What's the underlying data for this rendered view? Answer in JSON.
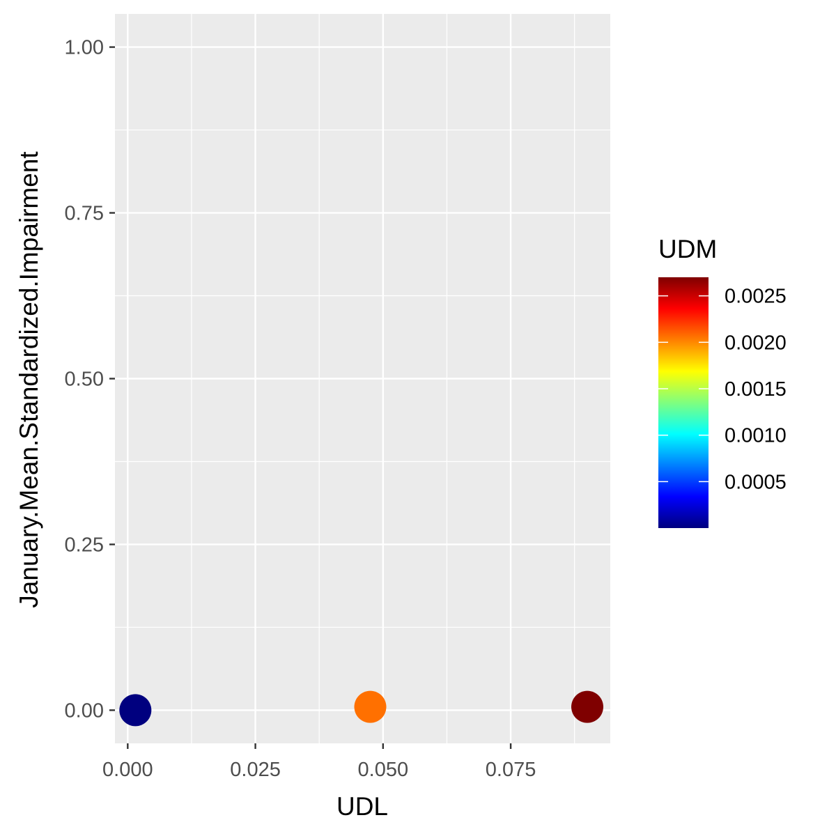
{
  "chart_data": {
    "type": "scatter",
    "title": "",
    "xlabel": "UDL",
    "ylabel": "January.Mean.Standardized.Impairment",
    "xlim": [
      -0.0025,
      0.0945
    ],
    "ylim": [
      -0.05,
      1.05
    ],
    "x_ticks": [
      0.0,
      0.025,
      0.05,
      0.075
    ],
    "x_tick_labels": [
      "0.000",
      "0.025",
      "0.050",
      "0.075"
    ],
    "y_ticks": [
      0.0,
      0.25,
      0.5,
      0.75,
      1.0
    ],
    "y_tick_labels": [
      "0.00",
      "0.25",
      "0.50",
      "0.75",
      "1.00"
    ],
    "grid": true,
    "points": [
      {
        "x": 0.0015,
        "y": 0.0,
        "udm": 0.0,
        "color": "#00007F"
      },
      {
        "x": 0.0475,
        "y": 0.005,
        "udm": 0.00205,
        "color": "#FF7000"
      },
      {
        "x": 0.09,
        "y": 0.005,
        "udm": 0.0027,
        "color": "#7F0000"
      }
    ],
    "color_scale": {
      "title": "UDM",
      "palette": "jet",
      "min": 0.0,
      "max": 0.0027,
      "breaks": [
        0.0025,
        0.002,
        0.0015,
        0.001,
        0.0005
      ],
      "break_labels": [
        "0.0025",
        "0.0020",
        "0.0015",
        "0.0010",
        "0.0005"
      ],
      "gradient_colors": [
        "#00007F",
        "#0000FF",
        "#007FFF",
        "#00FFFF",
        "#7FFF7F",
        "#FFFF00",
        "#FF7F00",
        "#FF0000",
        "#7F0000"
      ],
      "legend_position": "right"
    },
    "colors": {
      "panel_background": "#EBEBEB",
      "grid": "#FFFFFF",
      "tick": "#333333"
    }
  }
}
